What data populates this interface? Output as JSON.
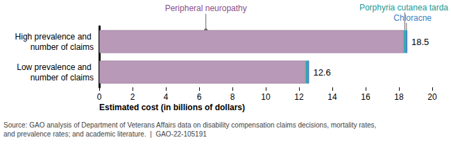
{
  "chart_data": {
    "type": "bar",
    "orientation": "horizontal",
    "stacked": true,
    "categories": [
      "High prevalence and number of claims",
      "Low prevalence and number of claims"
    ],
    "series": [
      {
        "name": "Peripheral neuropathy",
        "color": "#b899b8",
        "values": [
          18.3,
          12.4
        ]
      },
      {
        "name": "Porphyria cutanea tarda",
        "color": "#1fa7a2",
        "values": [
          0.1,
          0.1
        ]
      },
      {
        "name": "Chloracne",
        "color": "#3b7fc4",
        "values": [
          0.1,
          0.1
        ]
      }
    ],
    "totals": [
      18.5,
      12.6
    ],
    "xlabel": "Estimated cost (in billions of dollars)",
    "xlim": [
      0,
      20
    ],
    "xticks": [
      0,
      2,
      4,
      6,
      8,
      10,
      12,
      14,
      16,
      18,
      20
    ],
    "grid": false,
    "source": [
      "Source: GAO analysis of Department of Veterans Affairs data on disability compensation claims decisions, mortality rates,",
      "and prevalence rates; and academic literature.  |  GAO-22-105191"
    ]
  }
}
